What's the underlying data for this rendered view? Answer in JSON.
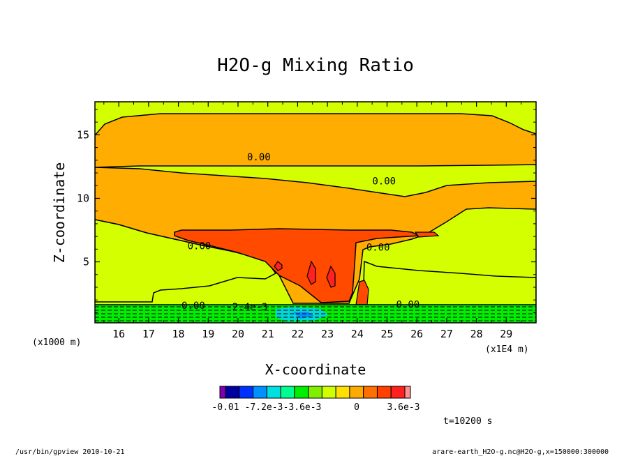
{
  "chart_data": {
    "type": "contour",
    "title": "H2O-g Mixing Ratio",
    "xlabel": "X-coordinate",
    "ylabel": "Z-coordinate",
    "x_unit_label": "(x1E4 m)",
    "y_unit_label": "(x1000 m)",
    "xlim": [
      15.2,
      30.0
    ],
    "ylim": [
      0.2,
      17.6
    ],
    "x_ticks": [
      16,
      17,
      18,
      19,
      20,
      21,
      22,
      23,
      24,
      25,
      26,
      27,
      28,
      29
    ],
    "y_ticks": [
      5,
      10,
      15
    ],
    "contour_labels": [
      {
        "text": "0.00",
        "x": 20.7,
        "y": 13.1
      },
      {
        "text": "0.00",
        "x": 24.9,
        "y": 11.2
      },
      {
        "text": "0.00",
        "x": 18.7,
        "y": 6.1
      },
      {
        "text": "0.00",
        "x": 24.7,
        "y": 6.0
      },
      {
        "text": "0.00",
        "x": 18.5,
        "y": 1.4
      },
      {
        "text": "0.00",
        "x": 25.7,
        "y": 1.5
      },
      {
        "text": "-2.4e-3",
        "x": 20.3,
        "y": 1.3
      }
    ],
    "colorbar": {
      "labels": [
        "-0.01",
        "-7.2e-3",
        "-3.6e-3",
        "0",
        "3.6e-3"
      ],
      "colors": [
        "#8000b0",
        "#0000a0",
        "#0030ff",
        "#0090ff",
        "#00e0e0",
        "#00ff90",
        "#00ee00",
        "#80f000",
        "#d0ff00",
        "#ffe000",
        "#ffaa00",
        "#ff7000",
        "#ff4000",
        "#ff2020",
        "#ff9090"
      ]
    },
    "time_label": "t=10200 s",
    "colors": {
      "lime": "#d4ff00",
      "orange": "#ffad00",
      "red_orange": "#ff4a00",
      "dark_red": "#ff2020",
      "green": "#00ee00",
      "cyan": "#00d8d8"
    }
  },
  "footer": {
    "left": "/usr/bin/gpview   2010-10-21",
    "right": "arare-earth_H2O-g.nc@H2O-g,x=150000:300000"
  }
}
